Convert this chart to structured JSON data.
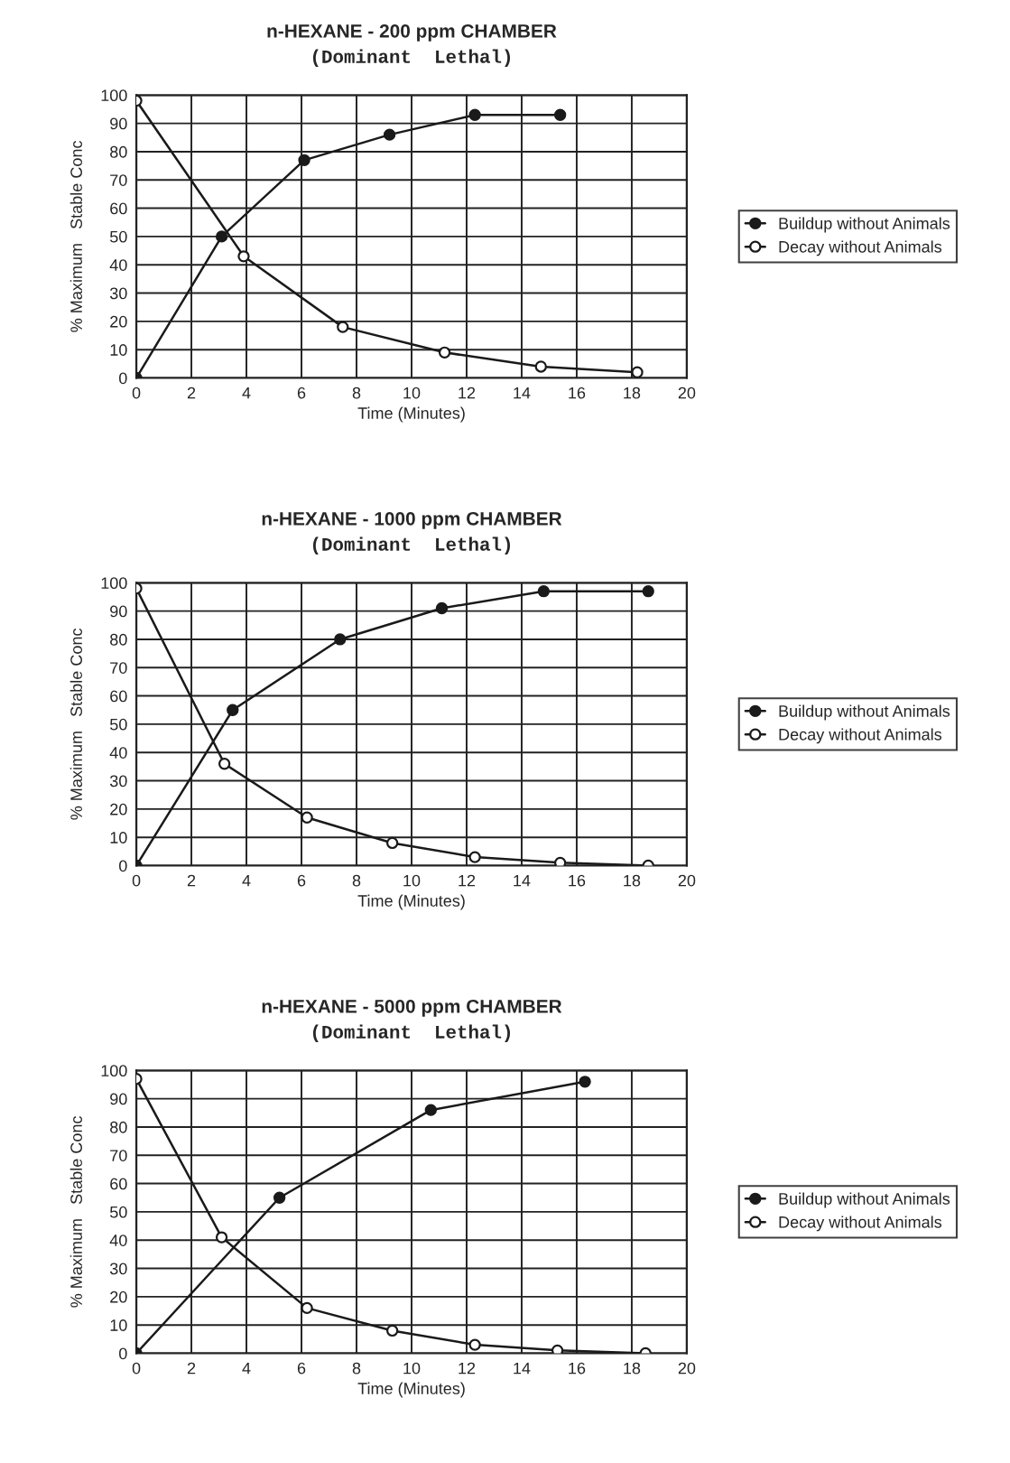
{
  "chart_data": [
    {
      "type": "line",
      "title": "n-HEXANE - 200 ppm CHAMBER",
      "subtitle": "(Dominant  Lethal)",
      "xlabel": "Time (Minutes)",
      "ylabel": "% Maximum   Stable Conc",
      "xlim": [
        0,
        20
      ],
      "xticks": [
        0,
        2,
        4,
        6,
        8,
        10,
        12,
        14,
        16,
        18,
        20
      ],
      "ylim": [
        0,
        100
      ],
      "yticks": [
        0,
        10,
        20,
        30,
        40,
        50,
        60,
        70,
        80,
        90,
        100
      ],
      "grid": true,
      "legend": "right",
      "series": [
        {
          "name": "Buildup without Animals",
          "color": "#1a1a1a",
          "marker": "circle",
          "x": [
            0,
            3.1,
            6.1,
            9.2,
            12.3,
            15.4
          ],
          "values": [
            0,
            50,
            77,
            86,
            93,
            93
          ]
        },
        {
          "name": "Decay without Animals",
          "color": "#1a1a1a",
          "marker": "circle",
          "x": [
            0,
            3.9,
            7.5,
            11.2,
            14.7,
            18.2
          ],
          "values": [
            98,
            43,
            18,
            9,
            4,
            2
          ]
        }
      ]
    },
    {
      "type": "line",
      "title": "n-HEXANE - 1000 ppm CHAMBER",
      "subtitle": "(Dominant  Lethal)",
      "xlabel": "Time (Minutes)",
      "ylabel": "% Maximum   Stable Conc",
      "xlim": [
        0,
        20
      ],
      "xticks": [
        0,
        2,
        4,
        6,
        8,
        10,
        12,
        14,
        16,
        18,
        20
      ],
      "ylim": [
        0,
        100
      ],
      "yticks": [
        0,
        10,
        20,
        30,
        40,
        50,
        60,
        70,
        80,
        90,
        100
      ],
      "grid": true,
      "legend": "right",
      "series": [
        {
          "name": "Buildup without Animals",
          "color": "#1a1a1a",
          "marker": "circle",
          "x": [
            0,
            3.5,
            7.4,
            11.1,
            14.8,
            18.6
          ],
          "values": [
            0,
            55,
            80,
            91,
            97,
            97
          ]
        },
        {
          "name": "Decay without Animals",
          "color": "#1a1a1a",
          "marker": "circle",
          "x": [
            0,
            3.2,
            6.2,
            9.3,
            12.3,
            15.4,
            18.6
          ],
          "values": [
            98,
            36,
            17,
            8,
            3,
            1,
            0
          ]
        }
      ]
    },
    {
      "type": "line",
      "title": "n-HEXANE - 5000 ppm CHAMBER",
      "subtitle": "(Dominant  Lethal)",
      "xlabel": "Time (Minutes)",
      "ylabel": "% Maximum   Stable Conc",
      "xlim": [
        0,
        20
      ],
      "xticks": [
        0,
        2,
        4,
        6,
        8,
        10,
        12,
        14,
        16,
        18,
        20
      ],
      "ylim": [
        0,
        100
      ],
      "yticks": [
        0,
        10,
        20,
        30,
        40,
        50,
        60,
        70,
        80,
        90,
        100
      ],
      "grid": true,
      "legend": "right",
      "series": [
        {
          "name": "Buildup without Animals",
          "color": "#1a1a1a",
          "marker": "circle",
          "x": [
            0,
            5.2,
            10.7,
            16.3
          ],
          "values": [
            0,
            55,
            86,
            96
          ]
        },
        {
          "name": "Decay without Animals",
          "color": "#1a1a1a",
          "marker": "circle",
          "x": [
            0,
            3.1,
            6.2,
            9.3,
            12.3,
            15.3,
            18.5
          ],
          "values": [
            97,
            41,
            16,
            8,
            3,
            1,
            0
          ]
        }
      ]
    }
  ]
}
